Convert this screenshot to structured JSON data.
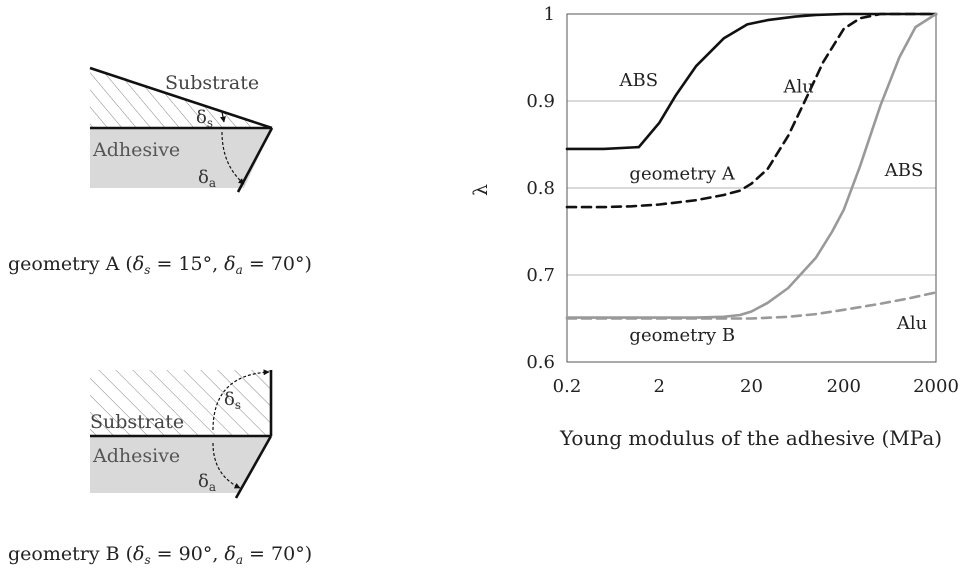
{
  "figure": {
    "geometryA": {
      "substrate_label": "Substrate",
      "adhesive_label": "Adhesive",
      "delta_s_sym": "δ",
      "delta_s_sub": "s",
      "delta_a_sym": "δ",
      "delta_a_sub": "a",
      "caption_prefix": "geometry A (",
      "caption_s_sym": "δ",
      "caption_s_sub": "s",
      "caption_s_val": " = 15°, ",
      "caption_a_sym": "δ",
      "caption_a_sub": "a",
      "caption_a_val": " = 70°)"
    },
    "geometryB": {
      "substrate_label": "Substrate",
      "adhesive_label": "Adhesive",
      "delta_s_sym": "δ",
      "delta_s_sub": "s",
      "delta_a_sym": "δ",
      "delta_a_sub": "a",
      "caption_prefix": "geometry B (",
      "caption_s_sym": "δ",
      "caption_s_sub": "s",
      "caption_s_val": " = 90°, ",
      "caption_a_sym": "δ",
      "caption_a_sub": "a",
      "caption_a_val": " = 70°)"
    }
  },
  "chart_data": {
    "type": "line",
    "title": "",
    "xlabel": "Young modulus of the adhesive (MPa)",
    "ylabel": "λ",
    "x_scale": "log",
    "xlim": [
      0.2,
      2000
    ],
    "ylim": [
      0.6,
      1.0
    ],
    "x_ticks": [
      0.2,
      2,
      20,
      200,
      2000
    ],
    "x_tick_labels": [
      "0.2",
      "2",
      "20",
      "200",
      "2000"
    ],
    "y_ticks": [
      0.6,
      0.7,
      0.8,
      0.9,
      1.0
    ],
    "y_tick_labels": [
      "0.6",
      "0.7",
      "0.8",
      "0.9",
      "1"
    ],
    "grid": "horizontal",
    "series": [
      {
        "name": "ABS",
        "group": "geometry A",
        "color": "#111111",
        "dash": "solid",
        "x": [
          0.2,
          0.5,
          1.2,
          2,
          3,
          5,
          10,
          18,
          30,
          60,
          100,
          200,
          500,
          1000,
          2000
        ],
        "y": [
          0.845,
          0.845,
          0.847,
          0.875,
          0.906,
          0.94,
          0.972,
          0.988,
          0.993,
          0.997,
          0.999,
          1.0,
          1.0,
          1.0,
          1.0
        ]
      },
      {
        "name": "Alu",
        "group": "geometry A",
        "color": "#111111",
        "dash": "dashed",
        "x": [
          0.2,
          0.5,
          1,
          2,
          5,
          10,
          15,
          20,
          30,
          50,
          80,
          120,
          200,
          300,
          500,
          1000,
          2000
        ],
        "y": [
          0.778,
          0.778,
          0.779,
          0.781,
          0.786,
          0.792,
          0.797,
          0.805,
          0.822,
          0.86,
          0.905,
          0.945,
          0.983,
          0.995,
          1.0,
          1.0,
          1.0
        ]
      },
      {
        "name": "ABS",
        "group": "geometry B",
        "color": "#999999",
        "dash": "solid",
        "x": [
          0.2,
          1,
          5,
          10,
          15,
          20,
          30,
          50,
          100,
          150,
          200,
          300,
          500,
          800,
          1200,
          2000
        ],
        "y": [
          0.651,
          0.651,
          0.651,
          0.652,
          0.654,
          0.658,
          0.668,
          0.685,
          0.72,
          0.75,
          0.775,
          0.825,
          0.895,
          0.95,
          0.985,
          1.0
        ]
      },
      {
        "name": "Alu",
        "group": "geometry B",
        "color": "#999999",
        "dash": "dashed",
        "x": [
          0.2,
          1,
          5,
          10,
          20,
          50,
          100,
          200,
          500,
          1000,
          2000
        ],
        "y": [
          0.65,
          0.65,
          0.65,
          0.65,
          0.65,
          0.652,
          0.655,
          0.66,
          0.667,
          0.673,
          0.68
        ]
      }
    ],
    "annotations": [
      {
        "text": "ABS",
        "x": 1.2,
        "y": 0.917
      },
      {
        "text": "Alu",
        "x": 65,
        "y": 0.91
      },
      {
        "text": "geometry A",
        "x": 0.95,
        "y": 0.81
      },
      {
        "text": "ABS",
        "x": 900,
        "y": 0.814
      },
      {
        "text": "Alu",
        "x": 1100,
        "y": 0.638
      },
      {
        "text": "geometry B",
        "x": 0.95,
        "y": 0.624
      }
    ]
  }
}
